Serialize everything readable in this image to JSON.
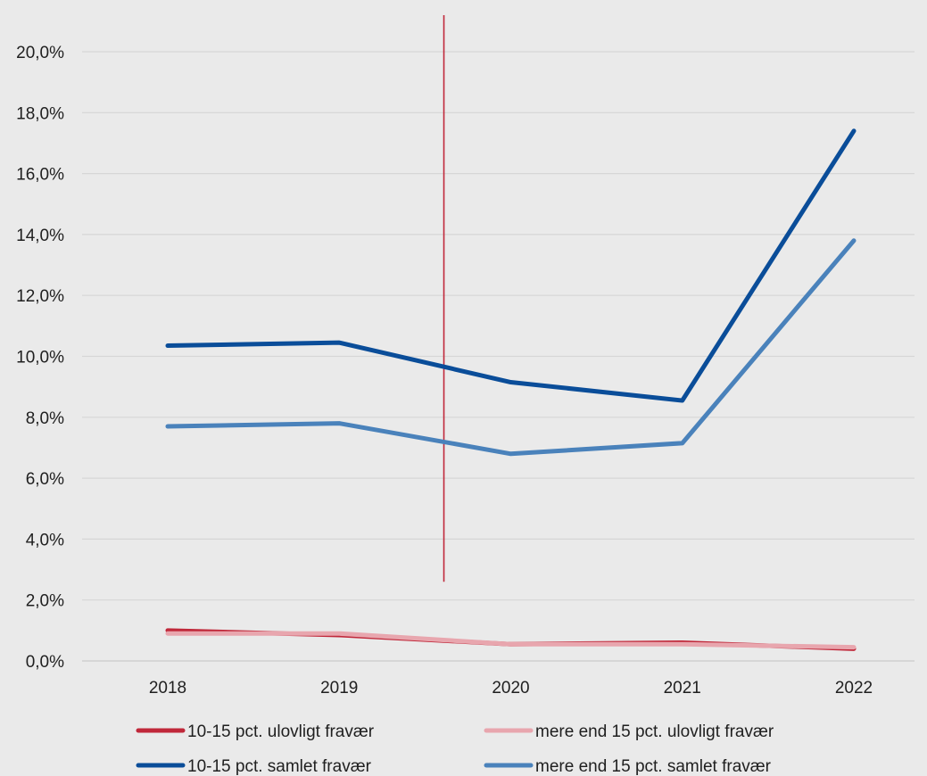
{
  "chart_data": {
    "type": "line",
    "title": "",
    "xlabel": "",
    "ylabel": "",
    "categories": [
      "2018",
      "2019",
      "2020",
      "2021",
      "2022"
    ],
    "y_ticks": [
      "0,0%",
      "2,0%",
      "4,0%",
      "6,0%",
      "8,0%",
      "10,0%",
      "12,0%",
      "14,0%",
      "16,0%",
      "18,0%",
      "20,0%"
    ],
    "ylim": [
      0,
      20
    ],
    "y_format": "percent_comma_1dp",
    "grid": true,
    "legend_position": "bottom",
    "series": [
      {
        "name": "10-15 pct. ulovligt fravær",
        "color": "#c0283a",
        "values": [
          1.0,
          0.85,
          0.55,
          0.6,
          0.4
        ]
      },
      {
        "name": "mere end 15 pct. ulovligt fravær",
        "color": "#e8a6ae",
        "values": [
          0.9,
          0.9,
          0.55,
          0.55,
          0.45
        ]
      },
      {
        "name": "10-15 pct. samlet fravær",
        "color": "#0a4d99",
        "values": [
          10.35,
          10.45,
          9.15,
          8.55,
          17.4
        ]
      },
      {
        "name": "mere end 15 pct. samlet fravær",
        "color": "#4a82bb",
        "values": [
          7.7,
          7.8,
          6.8,
          7.15,
          13.8
        ]
      }
    ],
    "annotation": {
      "type": "vertical-line",
      "color": "#c0283a",
      "x_between": [
        "2019",
        "2020"
      ],
      "y_range": [
        2.6,
        21.2
      ]
    }
  }
}
